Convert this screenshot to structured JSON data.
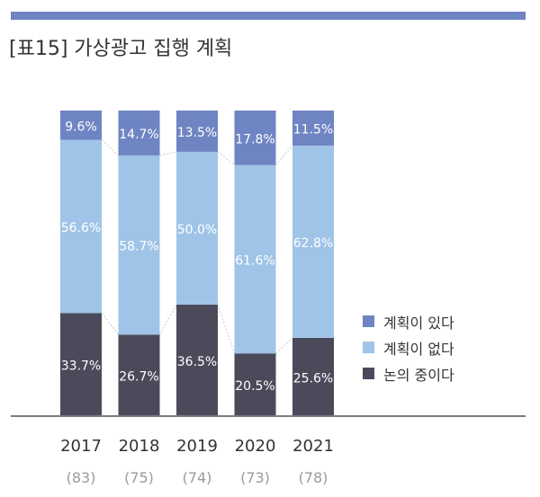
{
  "title": "[표15] 가상광고 집행 계획",
  "colors": {
    "bar": "#6f84c3",
    "plan_yes": "#6f84c3",
    "plan_no": "#9fc4e7",
    "considering": "#4a4a5a",
    "connector": "#c8c8d0",
    "axis": "#7a7a84"
  },
  "legend": {
    "items": [
      {
        "label": "계획이 있다",
        "color_key": "plan_yes"
      },
      {
        "label": "계획이 없다",
        "color_key": "plan_no"
      },
      {
        "label": "논의 중이다",
        "color_key": "considering"
      }
    ]
  },
  "chart_data": {
    "type": "bar",
    "stacked": true,
    "categories": [
      "2017",
      "2018",
      "2019",
      "2020",
      "2021"
    ],
    "sample_sizes": [
      "(83)",
      "(75)",
      "(74)",
      "(73)",
      "(78)"
    ],
    "series": [
      {
        "name": "논의 중이다",
        "values": [
          33.7,
          26.7,
          36.5,
          20.5,
          25.6
        ],
        "labels": [
          "33.7%",
          "26.7%",
          "36.5%",
          "20.5%",
          "25.6%"
        ]
      },
      {
        "name": "계획이 없다",
        "values": [
          56.6,
          58.7,
          50.0,
          61.6,
          62.8
        ],
        "labels": [
          "56.6%",
          "58.7%",
          "50.0%",
          "61.6%",
          "62.8%"
        ]
      },
      {
        "name": "계획이 있다",
        "values": [
          9.6,
          14.7,
          13.5,
          17.8,
          11.5
        ],
        "labels": [
          "9.6%",
          "14.7%",
          "13.5%",
          "17.8%",
          "11.5%"
        ]
      }
    ],
    "ylim": [
      0,
      100
    ],
    "grid": false,
    "legend_position": "right"
  }
}
